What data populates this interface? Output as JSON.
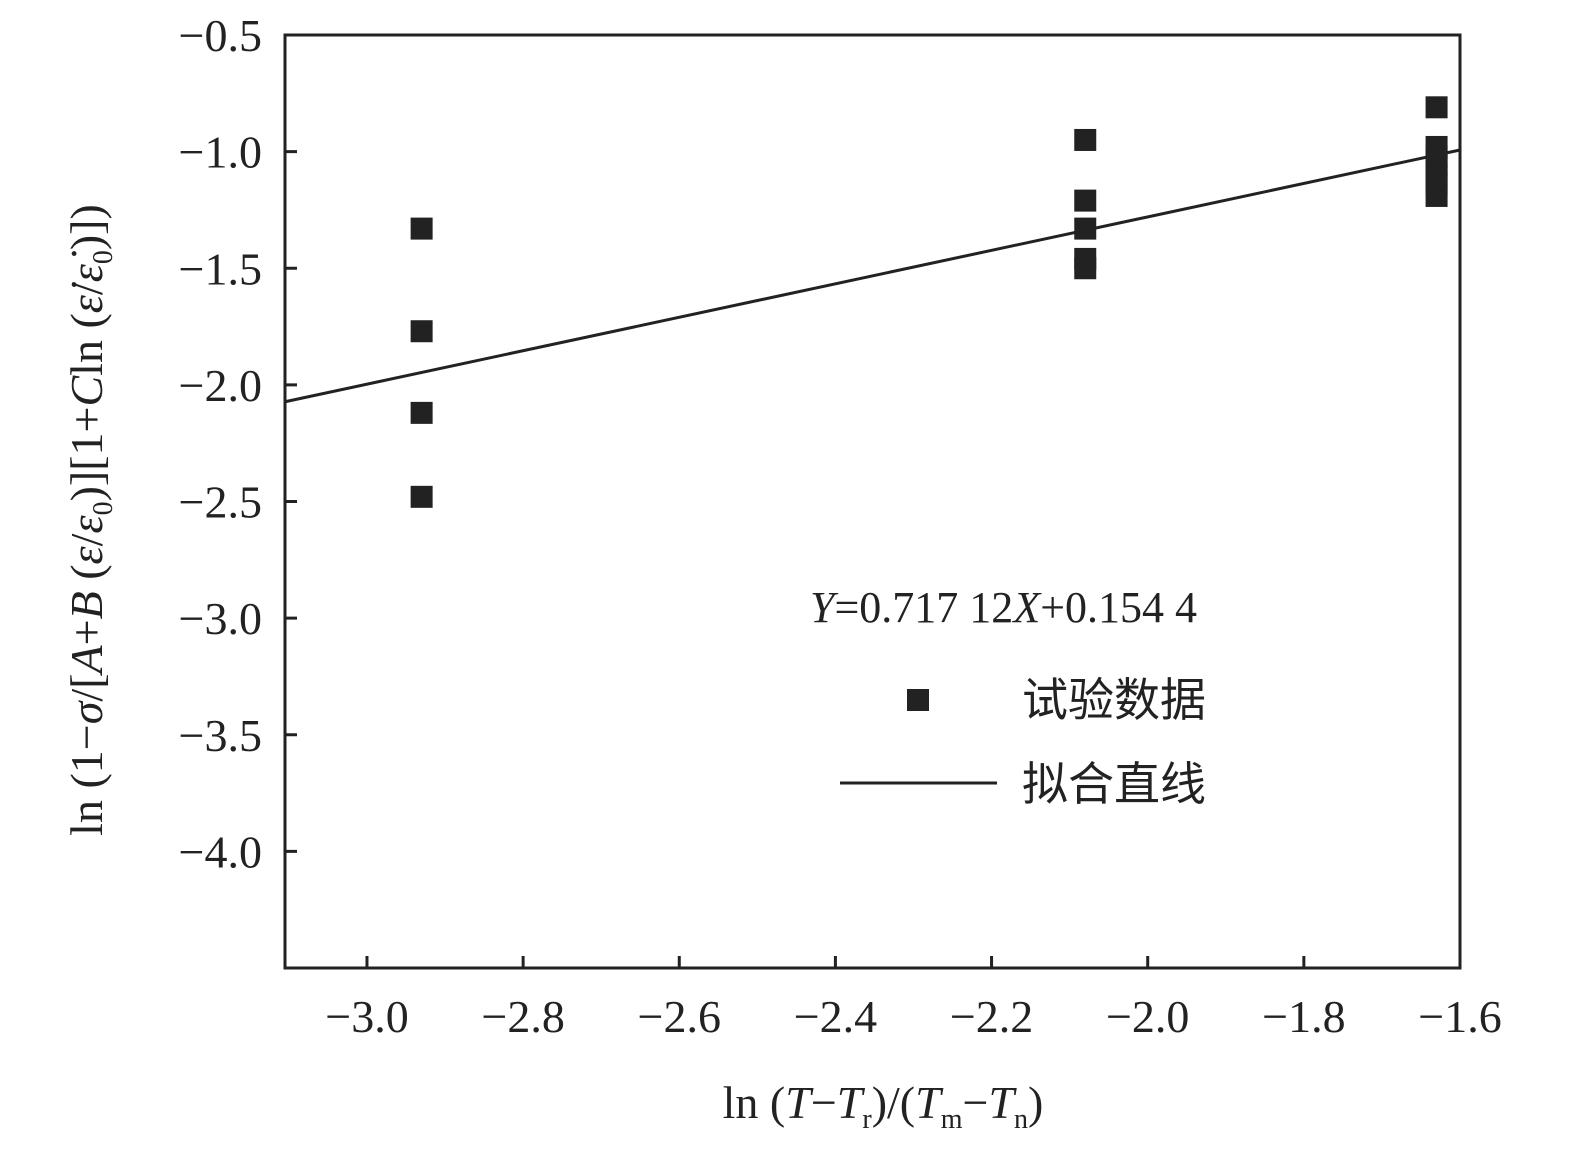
{
  "chart_data": {
    "type": "scatter",
    "xlabel": "ln (T−Tr)/(Tm−Tn)",
    "ylabel": "ln (1−σ/[A+B (ε/ε0)][1+Cln (ε̇/ε̇0)])",
    "xlim": [
      -3.105,
      -1.6
    ],
    "ylim": [
      -4.5,
      -0.5
    ],
    "x_ticks": [
      -3.0,
      -2.8,
      -2.6,
      -2.4,
      -2.2,
      -2.0,
      -1.8,
      -1.6
    ],
    "x_tick_labels": [
      "−3.0",
      "−2.8",
      "−2.6",
      "−2.4",
      "−2.2",
      "−2.0",
      "−1.8",
      "−1.6"
    ],
    "y_ticks": [
      -0.5,
      -1.0,
      -1.5,
      -2.0,
      -2.5,
      -3.0,
      -3.5,
      -4.0
    ],
    "y_tick_labels": [
      "−0.5",
      "−1.0",
      "−1.5",
      "−2.0",
      "−2.5",
      "−3.0",
      "−3.5",
      "−4.0"
    ],
    "grid": false,
    "legend_position": "lower-right",
    "equation": "Y=0.717 12X+0.154 4",
    "series": [
      {
        "name": "试验数据",
        "type": "scatter",
        "marker": "square",
        "points": [
          {
            "x": -2.93,
            "y": -1.33
          },
          {
            "x": -2.93,
            "y": -1.77
          },
          {
            "x": -2.93,
            "y": -2.12
          },
          {
            "x": -2.93,
            "y": -2.48
          },
          {
            "x": -2.08,
            "y": -0.95
          },
          {
            "x": -2.08,
            "y": -1.21
          },
          {
            "x": -2.08,
            "y": -1.33
          },
          {
            "x": -2.08,
            "y": -1.46
          },
          {
            "x": -2.08,
            "y": -1.5
          },
          {
            "x": -1.63,
            "y": -0.81
          },
          {
            "x": -1.63,
            "y": -0.98
          },
          {
            "x": -1.63,
            "y": -1.02
          },
          {
            "x": -1.63,
            "y": -1.06
          },
          {
            "x": -1.63,
            "y": -1.1
          },
          {
            "x": -1.63,
            "y": -1.14
          },
          {
            "x": -1.63,
            "y": -1.19
          }
        ]
      },
      {
        "name": "拟合直线",
        "type": "line",
        "slope": 0.71712,
        "intercept": 0.1544,
        "x_range": [
          -3.105,
          -1.6
        ]
      }
    ]
  },
  "colors": {
    "ink": "#222222",
    "background": "#ffffff"
  }
}
